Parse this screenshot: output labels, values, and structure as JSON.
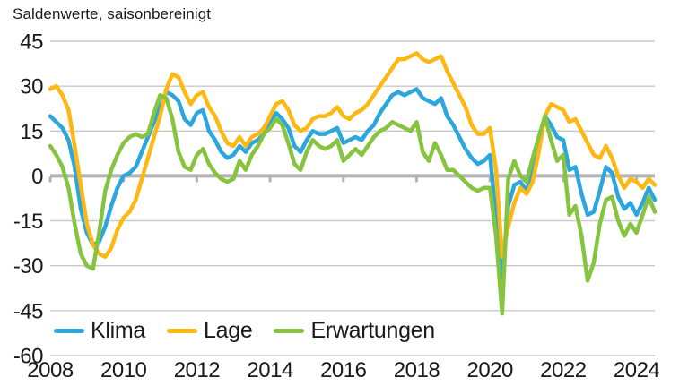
{
  "title": "Saldenwerte, saisonbereinigt",
  "colors": {
    "klima": "#2BA6DF",
    "lage": "#FDB813",
    "erwartungen": "#86C440",
    "gridline": "#C9C9C9",
    "zero_line": "#B2B2B2",
    "text": "#1a1a1a",
    "background": "#ffffff"
  },
  "chart_data": {
    "type": "line",
    "title": "Saldenwerte, saisonbereinigt",
    "x_start_year": 2008,
    "x_step_months": 2,
    "x_end_label": "2024-07",
    "x_tick_years": [
      2008,
      2010,
      2012,
      2014,
      2016,
      2018,
      2020,
      2022,
      2024
    ],
    "ylim": [
      -60,
      45
    ],
    "yticks": [
      45,
      30,
      15,
      0,
      -15,
      -30,
      -45,
      -60
    ],
    "grid": "horizontal",
    "legend_position": "bottom-left-inside",
    "series": [
      {
        "name": "Klima",
        "color": "#2BA6DF",
        "values": [
          20,
          18,
          16,
          12,
          3,
          -11,
          -19,
          -23,
          -22,
          -17,
          -10,
          -4,
          0,
          1,
          3,
          8,
          13,
          18,
          23,
          28,
          27,
          25,
          19,
          17,
          21,
          22,
          15,
          12,
          8,
          6,
          7,
          10,
          8,
          11,
          12,
          14,
          18,
          21,
          19,
          16,
          10,
          8,
          12,
          15,
          14,
          14,
          15,
          16,
          11,
          12,
          13,
          12,
          15,
          17,
          21,
          24,
          27,
          28,
          27,
          28,
          29,
          26,
          25,
          24,
          26,
          20,
          17,
          13,
          9,
          6,
          4,
          5,
          7,
          -14,
          -34,
          -10,
          -3,
          -2,
          -5,
          2,
          10,
          20,
          17,
          13,
          12,
          2,
          3,
          -6,
          -13,
          -12,
          -5,
          3,
          1,
          -7,
          -11,
          -9,
          -13,
          -9,
          -4,
          -8
        ]
      },
      {
        "name": "Lage",
        "color": "#FDB813",
        "values": [
          29,
          30,
          27,
          22,
          10,
          -3,
          -16,
          -23,
          -26,
          -27,
          -24,
          -18,
          -14,
          -12,
          -8,
          -1,
          6,
          13,
          20,
          29,
          34,
          33,
          28,
          24,
          27,
          28,
          23,
          20,
          15,
          11,
          10,
          13,
          10,
          13,
          14,
          16,
          20,
          24,
          25,
          22,
          17,
          15,
          16,
          19,
          20,
          20,
          21,
          23,
          20,
          19,
          21,
          22,
          24,
          27,
          30,
          33,
          36,
          39,
          39,
          40,
          41,
          39,
          38,
          39,
          40,
          35,
          31,
          27,
          23,
          17,
          14,
          14,
          16,
          2,
          -27,
          -17,
          -9,
          -4,
          -6,
          -2,
          8,
          20,
          24,
          23,
          22,
          18,
          19,
          15,
          11,
          7,
          6,
          10,
          6,
          0,
          -4,
          -1,
          -2,
          -4,
          -1,
          -3
        ]
      },
      {
        "name": "Erwartungen",
        "color": "#86C440",
        "values": [
          10,
          7,
          3,
          -4,
          -16,
          -26,
          -30,
          -31,
          -19,
          -5,
          2,
          7,
          11,
          13,
          14,
          13,
          14,
          21,
          27,
          26,
          19,
          8,
          3,
          2,
          7,
          9,
          4,
          1,
          -1,
          -2,
          -1,
          5,
          2,
          7,
          10,
          14,
          16,
          19,
          17,
          11,
          4,
          2,
          8,
          12,
          10,
          9,
          10,
          12,
          5,
          7,
          9,
          7,
          10,
          13,
          15,
          16,
          18,
          17,
          16,
          15,
          18,
          8,
          5,
          11,
          7,
          2,
          2,
          0,
          -2,
          -4,
          -5,
          -4,
          -4,
          -20,
          -46,
          -1,
          5,
          0,
          -2,
          6,
          13,
          20,
          12,
          5,
          7,
          -13,
          -10,
          -20,
          -35,
          -29,
          -16,
          -8,
          -7,
          -15,
          -20,
          -16,
          -19,
          -13,
          -7,
          -12
        ]
      }
    ]
  },
  "legend": {
    "items": [
      {
        "label": "Klima",
        "color": "#2BA6DF"
      },
      {
        "label": "Lage",
        "color": "#FDB813"
      },
      {
        "label": "Erwartungen",
        "color": "#86C440"
      }
    ]
  }
}
